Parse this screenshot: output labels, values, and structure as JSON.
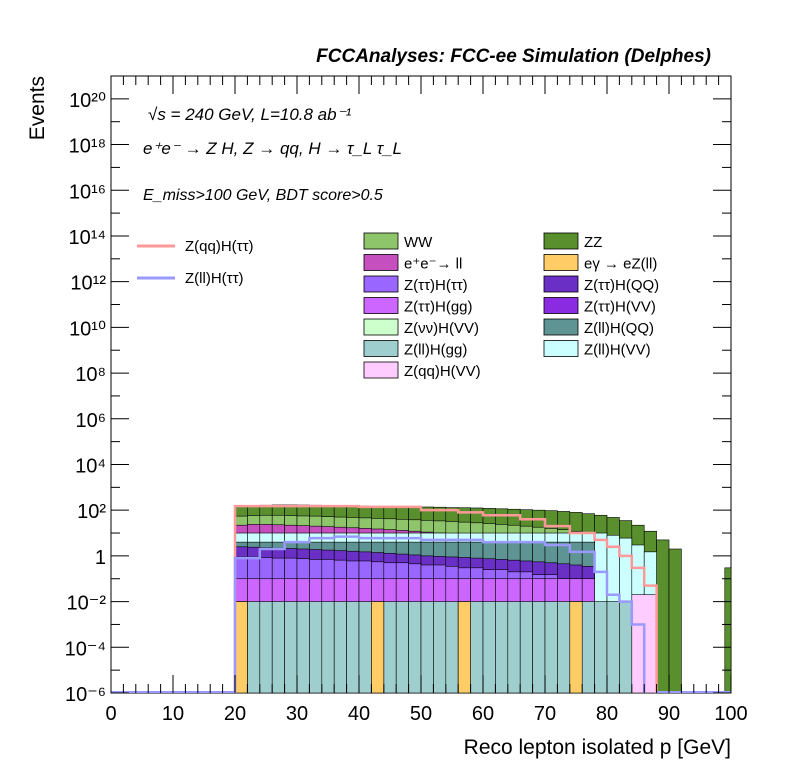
{
  "header": {
    "title": "FCCAnalyses: FCC-ee Simulation (Delphes)"
  },
  "annotations": {
    "line1": "√s = 240 GeV, L=10.8 ab⁻¹",
    "line2": "e⁺e⁻ → Z H, Z → qq, H → τ_L τ_L",
    "line3": "E_miss>100 GeV, BDT score>0.5"
  },
  "chart_data": {
    "type": "stacked-histogram",
    "title": "FCCAnalyses: FCC-ee Simulation (Delphes)",
    "xlabel": "Reco lepton isolated p [GeV]",
    "ylabel": "Events",
    "xlim": [
      0,
      100
    ],
    "ylim": [
      1e-06,
      1e+21
    ],
    "yscale": "log",
    "x_ticks": [
      0,
      10,
      20,
      30,
      40,
      50,
      60,
      70,
      80,
      90,
      100
    ],
    "y_ticks": [
      {
        "value": 1e-06,
        "label": "10⁻⁶"
      },
      {
        "value": 0.0001,
        "label": "10⁻⁴"
      },
      {
        "value": 0.01,
        "label": "10⁻²"
      },
      {
        "value": 1,
        "label": "1"
      },
      {
        "value": 100.0,
        "label": "10²"
      },
      {
        "value": 10000.0,
        "label": "10⁴"
      },
      {
        "value": 1000000.0,
        "label": "10⁶"
      },
      {
        "value": 100000000.0,
        "label": "10⁸"
      },
      {
        "value": 10000000000.0,
        "label": "10¹⁰"
      },
      {
        "value": 1000000000000.0,
        "label": "10¹²"
      },
      {
        "value": 100000000000000.0,
        "label": "10¹⁴"
      },
      {
        "value": 1e+16,
        "label": "10¹⁶"
      },
      {
        "value": 1e+18,
        "label": "10¹⁸"
      },
      {
        "value": 1e+20,
        "label": "10²⁰"
      }
    ],
    "stack_boundaries": [
      {
        "name": "ZZ",
        "color": "#5a8f2e",
        "edges": [
          20,
          22,
          24,
          26,
          28,
          30,
          32,
          34,
          36,
          38,
          40,
          42,
          44,
          46,
          48,
          50,
          52,
          54,
          56,
          58,
          60,
          62,
          64,
          66,
          68,
          70,
          72,
          74,
          76,
          78,
          80,
          82,
          84,
          86,
          88,
          90,
          92
        ],
        "values": [
          150,
          160,
          165,
          170,
          170,
          168,
          165,
          160,
          158,
          155,
          150,
          148,
          145,
          142,
          140,
          138,
          135,
          130,
          128,
          125,
          120,
          115,
          110,
          105,
          100,
          95,
          88,
          80,
          70,
          60,
          48,
          35,
          22,
          12,
          5,
          2
        ],
        "tail": [
          {
            "x0": 99,
            "x1": 100,
            "value": 0.3
          }
        ]
      },
      {
        "name": "WW",
        "color": "#8ec46a",
        "edges": [
          20,
          22,
          24,
          26,
          28,
          30,
          32,
          34,
          36,
          38,
          40,
          42,
          44,
          46,
          48,
          50,
          52,
          54,
          56,
          58,
          60,
          62,
          64,
          66,
          68,
          70,
          72,
          74,
          76,
          78,
          80,
          82,
          84,
          86,
          88
        ],
        "values": [
          55,
          58,
          60,
          60,
          58,
          56,
          55,
          52,
          50,
          48,
          46,
          44,
          42,
          40,
          38,
          36,
          34,
          32,
          30,
          28,
          26,
          24,
          22,
          20,
          18,
          16,
          14,
          12,
          10,
          8,
          6,
          4,
          2.5,
          1.2
        ]
      },
      {
        "name": "e⁺e⁻→ ll",
        "color": "#c54fbf",
        "edges": [
          20,
          22,
          24,
          26,
          28,
          30,
          32,
          34,
          36,
          38,
          40,
          42,
          44,
          46,
          48,
          50,
          52,
          54,
          56,
          58,
          60,
          62,
          64,
          66,
          68,
          70,
          72,
          74,
          76,
          78,
          80,
          82,
          84,
          86,
          88
        ],
        "values": [
          22,
          24,
          24,
          23,
          22,
          21,
          20,
          19,
          18,
          17,
          16,
          15,
          14,
          13,
          12,
          11,
          10,
          9.5,
          9,
          8.5,
          8,
          7.5,
          7,
          6.5,
          6,
          5.5,
          5,
          4.5,
          4,
          3.5,
          3,
          2.5,
          2,
          1.5
        ]
      },
      {
        "name": "Z(ll)H(VV)",
        "color": "#ccffff",
        "edges": [
          20,
          22,
          24,
          26,
          28,
          30,
          32,
          34,
          36,
          38,
          40,
          42,
          44,
          46,
          48,
          50,
          52,
          54,
          56,
          58,
          60,
          62,
          64,
          66,
          68,
          70,
          72,
          74,
          76,
          78,
          80,
          82,
          84,
          86,
          88
        ],
        "values": [
          10,
          10,
          10,
          10,
          10,
          10,
          10,
          10,
          10,
          10,
          10,
          10,
          10,
          10,
          10,
          10,
          10,
          10,
          10,
          10,
          10,
          10,
          10,
          10,
          10,
          10,
          10,
          10,
          10,
          10,
          8,
          6,
          3,
          1.5
        ]
      },
      {
        "name": "Z(ll)H(QQ)",
        "color": "#5f9494",
        "edges": [
          20,
          22,
          24,
          26,
          28,
          30,
          32,
          34,
          36,
          38,
          40,
          42,
          44,
          46,
          48,
          50,
          52,
          54,
          56,
          58,
          60,
          62,
          64,
          66,
          68,
          70,
          72,
          74,
          76,
          78
        ],
        "values": [
          4,
          4,
          4,
          4,
          4,
          4,
          4,
          4,
          4,
          4,
          4,
          4,
          4,
          4,
          4,
          4,
          4,
          4,
          4,
          4,
          4,
          4,
          4,
          4,
          4,
          4,
          4,
          4,
          4
        ]
      },
      {
        "name": "Z(ττ)H(QQ)",
        "color": "#6a2fc4",
        "edges": [
          20,
          22,
          24,
          26,
          28,
          30,
          32,
          34,
          36,
          38,
          40,
          42,
          44,
          46,
          48,
          50,
          52,
          54,
          56,
          58,
          60,
          62,
          64,
          66,
          68,
          70,
          72,
          74,
          76,
          78
        ],
        "values": [
          2.5,
          2.4,
          2.3,
          2.2,
          2.1,
          2,
          1.9,
          1.8,
          1.7,
          1.6,
          1.5,
          1.4,
          1.3,
          1.2,
          1.1,
          1,
          0.95,
          0.9,
          0.85,
          0.8,
          0.75,
          0.7,
          0.65,
          0.6,
          0.55,
          0.5,
          0.45,
          0.4,
          0.35
        ]
      },
      {
        "name": "Z(ττ)H(ττ)",
        "color": "#9966ff",
        "edges": [
          20,
          22,
          24,
          26,
          28,
          30,
          32,
          34,
          36,
          38,
          40,
          42,
          44,
          46,
          48,
          50,
          52,
          54,
          56,
          58,
          60,
          62,
          64,
          66,
          68,
          70,
          72,
          74,
          76,
          78
        ],
        "values": [
          0.9,
          0.9,
          0.85,
          0.8,
          0.8,
          0.75,
          0.7,
          0.7,
          0.65,
          0.6,
          0.6,
          0.55,
          0.5,
          0.5,
          0.45,
          0.4,
          0.4,
          0.35,
          0.3,
          0.3,
          0.25,
          0.25,
          0.2,
          0.2,
          0.15,
          0.15,
          0.1,
          0.1,
          0.05
        ]
      },
      {
        "name": "Z(ττ)H(gg)",
        "color": "#cc66ff",
        "edges": [
          20,
          22,
          24,
          26,
          28,
          30,
          32,
          34,
          36,
          38,
          40,
          42,
          44,
          46,
          48,
          50,
          52,
          54,
          56,
          58,
          60,
          62,
          64,
          66,
          68,
          70,
          72,
          74,
          76,
          78
        ],
        "values": [
          0.1,
          0.1,
          0.1,
          0.1,
          0.1,
          0.1,
          0.1,
          0.1,
          0.1,
          0.1,
          0.1,
          0.1,
          0.1,
          0.1,
          0.1,
          0.1,
          0.1,
          0.1,
          0.1,
          0.1,
          0.1,
          0.1,
          0.1,
          0.1,
          0.1,
          0.1,
          0.1,
          0.1,
          0.1
        ]
      },
      {
        "name": "Z(ll)H(gg)",
        "color": "#9ecece",
        "edges": [
          20,
          22,
          24,
          26,
          28,
          30,
          32,
          34,
          36,
          38,
          40,
          42,
          44,
          46,
          48,
          50,
          52,
          54,
          56,
          58,
          60,
          62,
          64,
          66,
          68,
          70,
          72,
          74,
          76,
          78,
          80,
          82,
          84,
          86
        ],
        "values": [
          0.01,
          0.01,
          0.01,
          0.01,
          0.01,
          0.01,
          0.01,
          0.01,
          0.01,
          0.01,
          0.01,
          0.01,
          0.01,
          0.01,
          0.01,
          0.01,
          0.01,
          0.01,
          0.01,
          0.01,
          0.01,
          0.01,
          0.01,
          0.01,
          0.01,
          0.01,
          0.01,
          0.01,
          0.01,
          0.01,
          0.01,
          0.01,
          0.01
        ]
      }
    ],
    "signal_lines": [
      {
        "name": "Z(qq)H(ττ)",
        "color": "#ff9999",
        "edges": [
          20,
          40,
          50,
          56,
          60,
          66,
          70,
          74,
          78,
          80,
          82,
          84,
          86,
          88
        ],
        "values": [
          150,
          140,
          100,
          80,
          60,
          40,
          20,
          10,
          5,
          2.5,
          1,
          0.3,
          0.05
        ],
        "end_value": 1e-06
      },
      {
        "name": "Z(ll)H(ττ)",
        "color": "#9999ff",
        "edges": [
          20,
          24,
          28,
          32,
          36,
          40,
          50,
          60,
          70,
          74,
          78,
          80,
          82,
          84,
          86
        ],
        "values": [
          0.8,
          2,
          4,
          6,
          7,
          6,
          5,
          4,
          3,
          1.5,
          0.2,
          0.02,
          0.01,
          0.001
        ],
        "end_value": 1e-06
      }
    ],
    "legend": {
      "lines": [
        {
          "label": "Z(qq)H(ττ)",
          "color": "#ff9999"
        },
        {
          "label": "Z(ll)H(ττ)",
          "color": "#9999ff"
        }
      ],
      "boxes": [
        {
          "label": "WW",
          "color": "#8ec46a"
        },
        {
          "label": "ZZ",
          "color": "#5a8f2e"
        },
        {
          "label": "e⁺e⁻→ ll",
          "color": "#c54fbf"
        },
        {
          "label": "eγ → eZ(ll)",
          "color": "#ffcc66"
        },
        {
          "label": "Z(ττ)H(ττ)",
          "color": "#9966ff"
        },
        {
          "label": "Z(ττ)H(QQ)",
          "color": "#6a2fc4"
        },
        {
          "label": "Z(ττ)H(gg)",
          "color": "#cc66ff"
        },
        {
          "label": "Z(ττ)H(VV)",
          "color": "#8a2be2"
        },
        {
          "label": "Z(νν)H(VV)",
          "color": "#ccffcc"
        },
        {
          "label": "Z(ll)H(QQ)",
          "color": "#5f9494"
        },
        {
          "label": "Z(ll)H(gg)",
          "color": "#9ecece"
        },
        {
          "label": "Z(ll)H(VV)",
          "color": "#ccffff"
        },
        {
          "label": "Z(qq)H(VV)",
          "color": "#ffccff"
        }
      ]
    },
    "spikes": [
      {
        "name": "eγ → eZ(ll)",
        "color": "#ffcc66",
        "bins": [
          [
            20,
            22,
            0.01
          ],
          [
            42,
            44,
            0.01
          ],
          [
            56,
            58,
            0.01
          ],
          [
            74,
            76,
            0.01
          ]
        ]
      },
      {
        "name": "Z(qq)H(VV)",
        "color": "#ffccff",
        "bins": [
          [
            84,
            88,
            0.02
          ]
        ]
      }
    ]
  }
}
